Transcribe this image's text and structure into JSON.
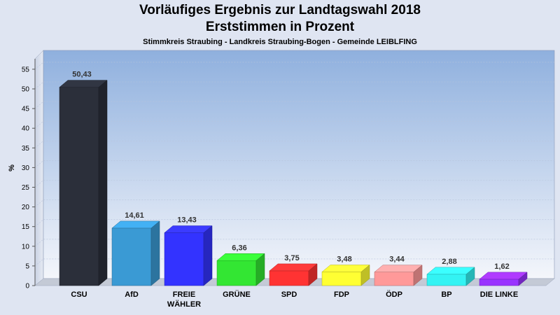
{
  "header": {
    "title_line1": "Vorläufiges Ergebnis zur Landtagswahl 2018",
    "title_line2": "Erststimmen in Prozent",
    "subtitle": "Stimmkreis Straubing - Landkreis Straubing-Bogen - Gemeinde LEIBLFING"
  },
  "chart_data": {
    "type": "bar",
    "title": "Vorläufiges Ergebnis zur Landtagswahl 2018 Erststimmen in Prozent",
    "subtitle": "Stimmkreis Straubing - Landkreis Straubing-Bogen - Gemeinde LEIBLFING",
    "ylabel": "%",
    "xlabel": "",
    "ylim": [
      0,
      57
    ],
    "yticks": [
      0,
      5,
      10,
      15,
      20,
      25,
      30,
      35,
      40,
      45,
      50,
      55
    ],
    "grid": true,
    "legend": "none",
    "categories": [
      "CSU",
      "AfD",
      "FREIE WÄHLER",
      "GRÜNE",
      "SPD",
      "FDP",
      "ÖDP",
      "BP",
      "DIE LINKE"
    ],
    "category_lines": [
      [
        "CSU"
      ],
      [
        "AfD"
      ],
      [
        "FREIE",
        "WÄHLER"
      ],
      [
        "GRÜNE"
      ],
      [
        "SPD"
      ],
      [
        "FDP"
      ],
      [
        "ÖDP"
      ],
      [
        "BP"
      ],
      [
        "DIE LINKE"
      ]
    ],
    "values": [
      50.43,
      14.61,
      13.43,
      6.36,
      3.75,
      3.48,
      3.44,
      2.88,
      1.62
    ],
    "value_labels": [
      "50,43",
      "14,61",
      "13,43",
      "6,36",
      "3,75",
      "3,48",
      "3,44",
      "2,88",
      "1,62"
    ],
    "colors": [
      "#2b2f3a",
      "#3a9ad4",
      "#3333ff",
      "#33e633",
      "#ff3333",
      "#ffff33",
      "#ff9999",
      "#33f3f3",
      "#9933ff"
    ]
  }
}
